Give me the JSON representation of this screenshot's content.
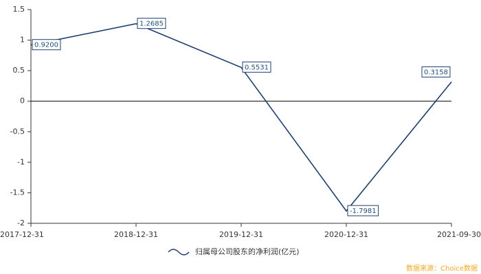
{
  "chart_data": {
    "type": "line",
    "categories": [
      "2017-12-31",
      "2018-12-31",
      "2019-12-31",
      "2020-12-31",
      "2021-09-30"
    ],
    "series": [
      {
        "name": "归属母公司股东的净利润(亿元)",
        "color": "#1f3f6e",
        "values": [
          0.92,
          1.2685,
          0.5531,
          -1.7981,
          0.3158
        ],
        "value_labels": [
          "0.9200",
          "1.2685",
          "0.5531",
          "-1.7981",
          "0.3158"
        ]
      }
    ],
    "ylim": [
      -2,
      1.5
    ],
    "yticks": [
      -2,
      -1.5,
      -1,
      -0.5,
      0,
      0.5,
      1,
      1.5
    ],
    "source": "数据来源：Choice数据"
  }
}
